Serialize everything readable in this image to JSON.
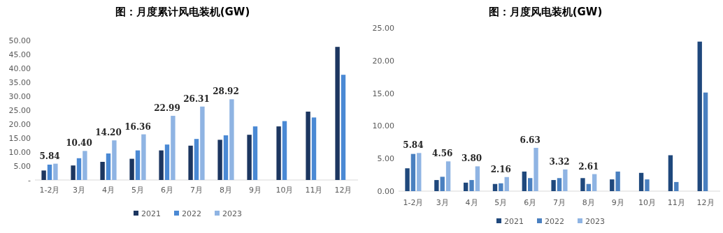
{
  "chart_data": [
    {
      "type": "bar",
      "title": "图：月度累计风电装机(GW)",
      "categories": [
        "1-2月",
        "3月",
        "4月",
        "5月",
        "6月",
        "7月",
        "8月",
        "9月",
        "10月",
        "11月",
        "12月"
      ],
      "series": [
        {
          "name": "2021",
          "color": "#1c3660",
          "values": [
            3.4,
            5.2,
            6.5,
            7.6,
            10.6,
            12.3,
            14.4,
            16.2,
            19.2,
            24.5,
            47.7
          ]
        },
        {
          "name": "2022",
          "color": "#4a89d4",
          "values": [
            5.5,
            7.8,
            9.5,
            10.6,
            12.7,
            14.7,
            16.0,
            19.2,
            21.1,
            22.4,
            37.7
          ]
        },
        {
          "name": "2023",
          "color": "#8fb4e3",
          "values": [
            5.84,
            10.4,
            14.2,
            16.36,
            22.99,
            26.31,
            28.92,
            null,
            null,
            null,
            null
          ],
          "value_labels": [
            "5.84",
            "10.40",
            "14.20",
            "16.36",
            "22.99",
            "26.31",
            "28.92",
            null,
            null,
            null,
            null
          ]
        }
      ],
      "ylim": [
        0,
        50
      ],
      "yticks": [
        {
          "value": 0,
          "label": "-"
        },
        {
          "value": 5,
          "label": "5.00"
        },
        {
          "value": 10,
          "label": "10.00"
        },
        {
          "value": 15,
          "label": "15.00"
        },
        {
          "value": 20,
          "label": "20.00"
        },
        {
          "value": 25,
          "label": "25.00"
        },
        {
          "value": 30,
          "label": "30.00"
        },
        {
          "value": 35,
          "label": "35.00"
        },
        {
          "value": 40,
          "label": "40.00"
        },
        {
          "value": 45,
          "label": "45.00"
        },
        {
          "value": 50,
          "label": "50.00"
        }
      ],
      "grid": false,
      "legend": "bottom"
    },
    {
      "type": "bar",
      "title": "图：月度风电装机(GW)",
      "categories": [
        "1-2月",
        "3月",
        "4月",
        "5月",
        "6月",
        "7月",
        "8月",
        "9月",
        "10月",
        "11月",
        "12月"
      ],
      "series": [
        {
          "name": "2021",
          "color": "#1f487c",
          "values": [
            3.5,
            1.7,
            1.3,
            1.1,
            3.0,
            1.7,
            2.0,
            1.8,
            2.8,
            5.5,
            22.9
          ]
        },
        {
          "name": "2022",
          "color": "#4a80c0",
          "values": [
            5.7,
            2.2,
            1.7,
            1.2,
            2.0,
            2.0,
            1.1,
            3.0,
            1.8,
            1.4,
            15.1
          ]
        },
        {
          "name": "2023",
          "color": "#8fb4e3",
          "values": [
            5.84,
            4.56,
            3.8,
            2.16,
            6.63,
            3.32,
            2.61,
            null,
            null,
            null,
            null
          ],
          "value_labels": [
            "5.84",
            "4.56",
            "3.80",
            "2.16",
            "6.63",
            "3.32",
            "2.61",
            null,
            null,
            null,
            null
          ]
        }
      ],
      "ylim": [
        0,
        25
      ],
      "yticks": [
        {
          "value": 0,
          "label": "0.00"
        },
        {
          "value": 5,
          "label": "5.00"
        },
        {
          "value": 10,
          "label": "10.00"
        },
        {
          "value": 15,
          "label": "15.00"
        },
        {
          "value": 20,
          "label": "20.00"
        },
        {
          "value": 25,
          "label": "25.00"
        }
      ],
      "grid": false,
      "legend": "bottom"
    }
  ]
}
